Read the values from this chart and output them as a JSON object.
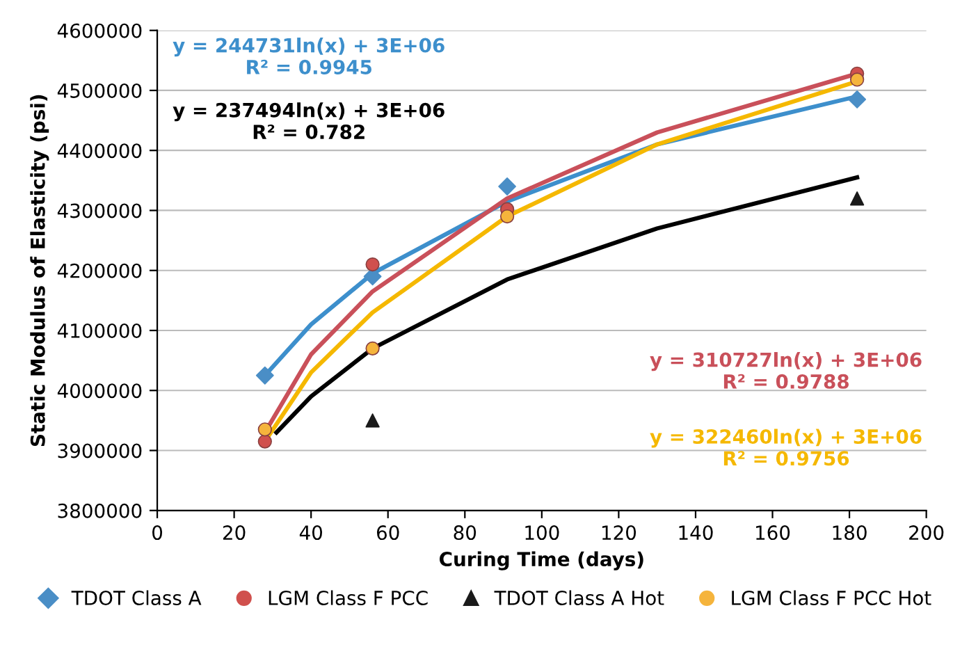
{
  "chart_data": {
    "type": "scatter",
    "xlabel": "Curing Time (days)",
    "ylabel": "Static Modulus of Elasticity (psi)",
    "x": [
      28,
      56,
      91,
      182
    ],
    "series": [
      {
        "name": "TDOT Class A",
        "color": "#4a8ec6",
        "marker": "diamond",
        "values": [
          4025000,
          4190000,
          4340000,
          4485000
        ]
      },
      {
        "name": "LGM Class F PCC",
        "color": "#d0504d",
        "marker": "circle",
        "values": [
          3915000,
          4210000,
          4302000,
          4528000
        ]
      },
      {
        "name": "TDOT Class A Hot",
        "color": "#1a1a1a",
        "marker": "triangle",
        "values": [
          null,
          3950000,
          null,
          4320000
        ]
      },
      {
        "name": "LGM Class F PCC Hot",
        "color": "#f5b43c",
        "marker": "circle",
        "values": [
          3935000,
          4070000,
          4290000,
          4518000
        ]
      },
      {
        "type": "line",
        "color": "#3d8fcc",
        "marker": "none",
        "x": [
          28,
          40,
          56,
          91,
          130,
          182
        ],
        "values": [
          4025000,
          4110000,
          4195000,
          4315000,
          4410000,
          4490000
        ]
      },
      {
        "type": "line",
        "color": "#000000",
        "marker": "none",
        "x": [
          31,
          40,
          56,
          91,
          130,
          182
        ],
        "values": [
          3930000,
          3990000,
          4070000,
          4185000,
          4270000,
          4355000
        ]
      },
      {
        "type": "line",
        "color": "#c9505a",
        "marker": "none",
        "x": [
          28,
          40,
          56,
          91,
          130,
          182
        ],
        "values": [
          3930000,
          4060000,
          4165000,
          4320000,
          4430000,
          4528000
        ]
      },
      {
        "type": "line",
        "color": "#f5b800",
        "marker": "none",
        "x": [
          28,
          40,
          56,
          91,
          130,
          182
        ],
        "values": [
          3915000,
          4030000,
          4130000,
          4290000,
          4410000,
          4515000
        ]
      }
    ],
    "annotations": [
      "y = 244731ln(x) + 3E+06\nR² = 0.9945",
      "y = 237494ln(x) + 3E+06\nR² = 0.782",
      "y = 310727ln(x) + 3E+06\nR² = 0.9788",
      "y = 322460ln(x) + 3E+06\nR² = 0.9756"
    ],
    "xlim": [
      0,
      200
    ],
    "xticks": [
      0,
      20,
      40,
      60,
      80,
      100,
      120,
      140,
      160,
      180,
      200
    ],
    "ylim": [
      3800000,
      4600000
    ],
    "yticks": [
      3800000,
      3900000,
      4000000,
      4100000,
      4200000,
      4300000,
      4400000,
      4500000,
      4600000
    ],
    "grid": "y",
    "legend": "bottom"
  }
}
